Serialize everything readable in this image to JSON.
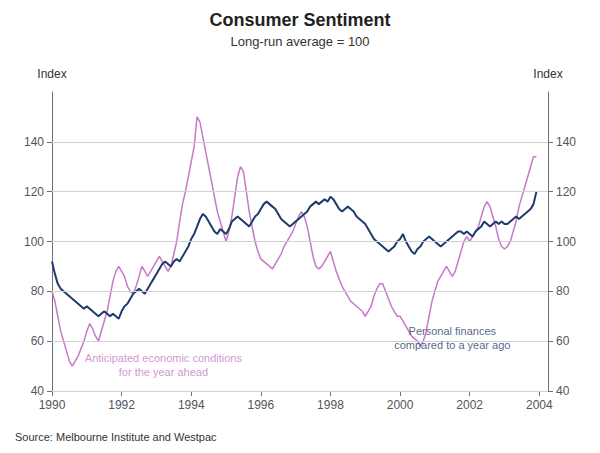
{
  "chart_data": {
    "type": "line",
    "title": "Consumer Sentiment",
    "subtitle": "Long-run average = 100",
    "ylabel": "Index",
    "y2label": "Index",
    "source": "Source: Melbourne Institute and Westpac",
    "x": [
      1990,
      1990.0833333333333,
      1990.1666666666667,
      1990.25,
      1990.3333333333333,
      1990.4166666666667,
      1990.5,
      1990.5833333333333,
      1990.6666666666667,
      1990.75,
      1990.8333333333333,
      1990.9166666666667,
      1991,
      1991.0833333333333,
      1991.1666666666667,
      1991.25,
      1991.3333333333333,
      1991.4166666666667,
      1991.5,
      1991.5833333333333,
      1991.6666666666667,
      1991.75,
      1991.8333333333333,
      1991.9166666666667,
      1992,
      1992.0833333333333,
      1992.1666666666667,
      1992.25,
      1992.3333333333333,
      1992.4166666666667,
      1992.5,
      1992.5833333333333,
      1992.6666666666667,
      1992.75,
      1992.8333333333333,
      1992.9166666666667,
      1993,
      1993.0833333333333,
      1993.1666666666667,
      1993.25,
      1993.3333333333333,
      1993.4166666666667,
      1993.5,
      1993.5833333333333,
      1993.6666666666667,
      1993.75,
      1993.8333333333333,
      1993.9166666666667,
      1994,
      1994.0833333333333,
      1994.1666666666667,
      1994.25,
      1994.3333333333333,
      1994.4166666666667,
      1994.5,
      1994.5833333333333,
      1994.6666666666667,
      1994.75,
      1994.8333333333333,
      1994.9166666666667,
      1995,
      1995.0833333333333,
      1995.1666666666667,
      1995.25,
      1995.3333333333333,
      1995.4166666666667,
      1995.5,
      1995.5833333333333,
      1995.6666666666667,
      1995.75,
      1995.8333333333333,
      1995.9166666666667,
      1996,
      1996.0833333333333,
      1996.1666666666667,
      1996.25,
      1996.3333333333333,
      1996.4166666666667,
      1996.5,
      1996.5833333333333,
      1996.6666666666667,
      1996.75,
      1996.8333333333333,
      1996.9166666666667,
      1997,
      1997.0833333333333,
      1997.1666666666667,
      1997.25,
      1997.3333333333333,
      1997.4166666666667,
      1997.5,
      1997.5833333333333,
      1997.6666666666667,
      1997.75,
      1997.8333333333333,
      1997.9166666666667,
      1998,
      1998.0833333333333,
      1998.1666666666667,
      1998.25,
      1998.3333333333333,
      1998.4166666666667,
      1998.5,
      1998.5833333333333,
      1998.6666666666667,
      1998.75,
      1998.8333333333333,
      1998.9166666666667,
      1999,
      1999.0833333333333,
      1999.1666666666667,
      1999.25,
      1999.3333333333333,
      1999.4166666666667,
      1999.5,
      1999.5833333333333,
      1999.6666666666667,
      1999.75,
      1999.8333333333333,
      1999.9166666666667,
      2000,
      2000.0833333333333,
      2000.1666666666667,
      2000.25,
      2000.3333333333333,
      2000.4166666666667,
      2000.5,
      2000.5833333333333,
      2000.6666666666667,
      2000.75,
      2000.8333333333333,
      2000.9166666666667,
      2001,
      2001.0833333333333,
      2001.1666666666667,
      2001.25,
      2001.3333333333333,
      2001.4166666666667,
      2001.5,
      2001.5833333333333,
      2001.6666666666667,
      2001.75,
      2001.8333333333333,
      2001.9166666666667,
      2002,
      2002.0833333333333,
      2002.1666666666667,
      2002.25,
      2002.3333333333333,
      2002.4166666666667,
      2002.5,
      2002.5833333333333,
      2002.6666666666667,
      2002.75,
      2002.8333333333333,
      2002.9166666666667,
      2003,
      2003.0833333333333,
      2003.1666666666667,
      2003.25,
      2003.3333333333333,
      2003.4166666666667,
      2003.5,
      2003.5833333333333,
      2003.6666666666667,
      2003.75,
      2003.8333333333333,
      2003.9166666666667
    ],
    "series": [
      {
        "color": "#C878C8",
        "values": [
          80,
          76,
          70,
          64,
          60,
          56,
          52,
          50,
          52,
          54,
          57,
          60,
          64,
          67,
          65,
          62,
          60,
          64,
          68,
          72,
          78,
          84,
          88,
          90,
          88,
          86,
          82,
          80,
          79,
          82,
          86,
          90,
          88,
          86,
          88,
          90,
          92,
          94,
          92,
          90,
          88,
          90,
          95,
          100,
          108,
          115,
          120,
          126,
          132,
          138,
          150,
          148,
          142,
          136,
          130,
          124,
          118,
          112,
          108,
          104,
          100,
          104,
          110,
          118,
          126,
          130,
          128,
          120,
          112,
          106,
          100,
          96,
          93,
          92,
          91,
          90,
          89,
          91,
          93,
          95,
          98,
          100,
          102,
          104,
          107,
          110,
          112,
          110,
          106,
          100,
          94,
          90,
          89,
          90,
          92,
          94,
          96,
          92,
          88,
          85,
          82,
          80,
          78,
          76,
          75,
          74,
          73,
          72,
          70,
          72,
          74,
          78,
          81,
          83,
          83,
          80,
          77,
          74,
          72,
          70,
          70,
          68,
          66,
          64,
          62,
          61,
          60,
          58,
          60,
          64,
          70,
          76,
          80,
          84,
          86,
          88,
          90,
          88,
          86,
          88,
          92,
          96,
          100,
          102,
          100,
          102,
          104,
          106,
          110,
          114,
          116,
          114,
          110,
          106,
          101,
          98,
          97,
          98,
          100,
          104,
          108,
          114,
          118,
          122,
          126,
          130,
          134,
          134
        ]
      },
      {
        "color": "#1F3A6E",
        "values": [
          92,
          87,
          83,
          81,
          80,
          79,
          78,
          77,
          76,
          75,
          74,
          73,
          74,
          73,
          72,
          71,
          70,
          71,
          72,
          71,
          70,
          71,
          70,
          69,
          72,
          74,
          75,
          77,
          79,
          80,
          81,
          80,
          79,
          81,
          83,
          85,
          87,
          89,
          91,
          92,
          91,
          90,
          92,
          93,
          92,
          94,
          96,
          98,
          101,
          103,
          106,
          109,
          111,
          110,
          108,
          106,
          104,
          103,
          105,
          104,
          103,
          105,
          108,
          109,
          110,
          109,
          108,
          107,
          106,
          108,
          110,
          111,
          113,
          115,
          116,
          115,
          114,
          113,
          111,
          109,
          108,
          107,
          106,
          107,
          108,
          109,
          110,
          111,
          112,
          114,
          115,
          116,
          115,
          116,
          117,
          116,
          118,
          117,
          115,
          113,
          112,
          113,
          114,
          113,
          112,
          110,
          109,
          108,
          107,
          105,
          103,
          101,
          100,
          99,
          98,
          97,
          96,
          97,
          98,
          100,
          101,
          103,
          100,
          98,
          96,
          95,
          97,
          98,
          100,
          101,
          102,
          101,
          100,
          99,
          98,
          99,
          100,
          101,
          102,
          103,
          104,
          104,
          103,
          104,
          103,
          102,
          104,
          105,
          106,
          108,
          107,
          106,
          107,
          108,
          107,
          108,
          107,
          107,
          108,
          109,
          110,
          109,
          110,
          111,
          112,
          113,
          115,
          120
        ]
      }
    ],
    "xlim": [
      1990.0,
      2004.25
    ],
    "xticks": [
      1990,
      1992,
      1994,
      1996,
      1998,
      2000,
      2002,
      2004
    ],
    "ylim": [
      40,
      160
    ],
    "yticks": [
      40,
      60,
      80,
      100,
      120,
      140
    ],
    "y2lim": [
      40,
      160
    ],
    "y2ticks": [
      40,
      60,
      80,
      100,
      120,
      140
    ],
    "grid": true,
    "annotations": [
      {
        "text": "Personal finances\ncompared to a year ago",
        "x": 2001.5,
        "y": 67,
        "color": "#1F3A6E"
      },
      {
        "text": "Anticipated economic conditions\nfor the year ahead",
        "x": 1993.2,
        "y": 56,
        "color": "#C878C8"
      }
    ]
  }
}
